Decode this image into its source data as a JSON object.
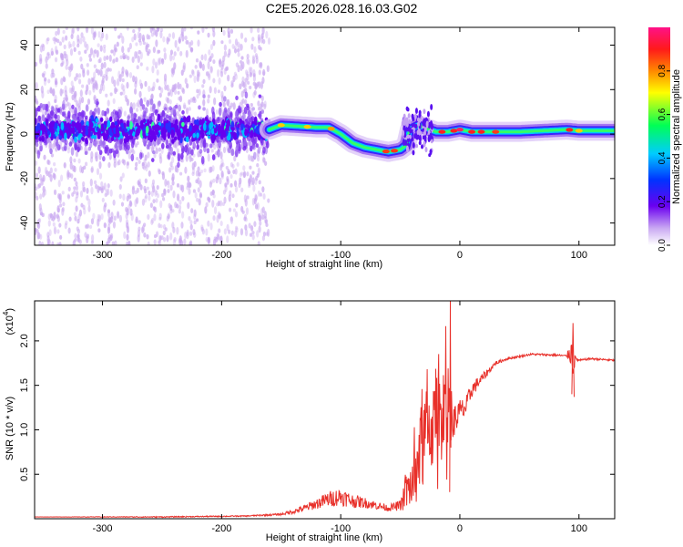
{
  "title": "C2E5.2026.028.16.03.G02",
  "colors": {
    "snr_line": "#e8302a",
    "spectrogram_core": "#6600ee",
    "spectrogram_scatter": "#c9a8f0"
  },
  "chart_data": [
    {
      "type": "heatmap",
      "xlabel": "Height of straight line (km)",
      "ylabel": "Frequency (Hz)",
      "xlim": [
        -357,
        130
      ],
      "ylim": [
        -50,
        48
      ],
      "xticks": [
        -300,
        -200,
        -100,
        0,
        100
      ],
      "xtick_labels": [
        "-300",
        "-200",
        "-100",
        "0",
        "100"
      ],
      "yticks": [
        -40,
        -20,
        0,
        20,
        40
      ],
      "ytick_labels": [
        "-40",
        "-20",
        "0",
        "20",
        "40"
      ],
      "colorbar": {
        "label": "Normalized spectral amplitude",
        "range": [
          0,
          1
        ],
        "ticks": [
          0,
          0.2,
          0.4,
          0.6,
          0.8
        ],
        "tick_labels": [
          "0.0",
          "0.2",
          "0.4",
          "0.6",
          "0.8"
        ],
        "colormap": "rainbow"
      },
      "ridge_frequency": {
        "x": [
          -357,
          -160,
          -150,
          -120,
          -110,
          -100,
          -90,
          -80,
          -70,
          -60,
          -50,
          -45,
          -42,
          -35,
          -30,
          -20,
          -10,
          0,
          10,
          50,
          90,
          100,
          130
        ],
        "y": [
          2,
          2,
          4,
          3,
          3,
          0,
          -4,
          -6,
          -7,
          -8,
          -7,
          -5,
          2,
          4,
          3,
          1,
          1,
          2,
          1,
          1,
          2,
          1.5,
          1.5
        ]
      },
      "noise_band": {
        "x_range": [
          -357,
          -160
        ],
        "y_range": [
          -50,
          48
        ]
      },
      "grid": false
    },
    {
      "type": "line",
      "xlabel": "Height of straight line (km)",
      "ylabel": "SNR (10 * v/v)",
      "y_multiplier_label": "(x10",
      "y_multiplier_exp": "4",
      "xlim": [
        -357,
        130
      ],
      "ylim": [
        0,
        2.45
      ],
      "xticks": [
        -300,
        -200,
        -100,
        0,
        100
      ],
      "xtick_labels": [
        "-300",
        "-200",
        "-100",
        "0",
        "100"
      ],
      "yticks": [
        0.5,
        1.0,
        1.5,
        2.0
      ],
      "ytick_labels": [
        "0.5",
        "1.0",
        "1.5",
        "2.0"
      ],
      "series": [
        {
          "x": [
            -357,
            -250,
            -180,
            -150,
            -140,
            -130,
            -120,
            -110,
            -100,
            -90,
            -80,
            -70,
            -60,
            -50,
            -45,
            -40,
            -35,
            -30,
            -25,
            -20,
            -15,
            -12,
            -10,
            -8,
            -5,
            0,
            5,
            10,
            20,
            30,
            40,
            60,
            80,
            90,
            93,
            95,
            97,
            100,
            110,
            130
          ],
          "y": [
            0.02,
            0.02,
            0.03,
            0.05,
            0.08,
            0.12,
            0.17,
            0.22,
            0.25,
            0.2,
            0.18,
            0.15,
            0.12,
            0.15,
            0.3,
            0.4,
            0.6,
            0.9,
            1.0,
            1.1,
            1.2,
            1.4,
            1.3,
            1.0,
            1.1,
            1.2,
            1.25,
            1.45,
            1.6,
            1.75,
            1.8,
            1.85,
            1.84,
            1.83,
            1.9,
            1.75,
            1.8,
            1.78,
            1.8,
            1.78
          ],
          "noise_amp": [
            0.0,
            0.01,
            0.01,
            0.02,
            0.04,
            0.07,
            0.1,
            0.15,
            0.17,
            0.13,
            0.1,
            0.08,
            0.06,
            0.1,
            0.35,
            0.5,
            0.7,
            0.9,
            0.85,
            0.8,
            0.9,
            1.0,
            0.9,
            0.5,
            0.3,
            0.25,
            0.2,
            0.15,
            0.08,
            0.04,
            0.02,
            0.02,
            0.02,
            0.02,
            0.3,
            0.3,
            0.05,
            0.02,
            0.02,
            0.02
          ]
        }
      ],
      "grid": false
    }
  ]
}
